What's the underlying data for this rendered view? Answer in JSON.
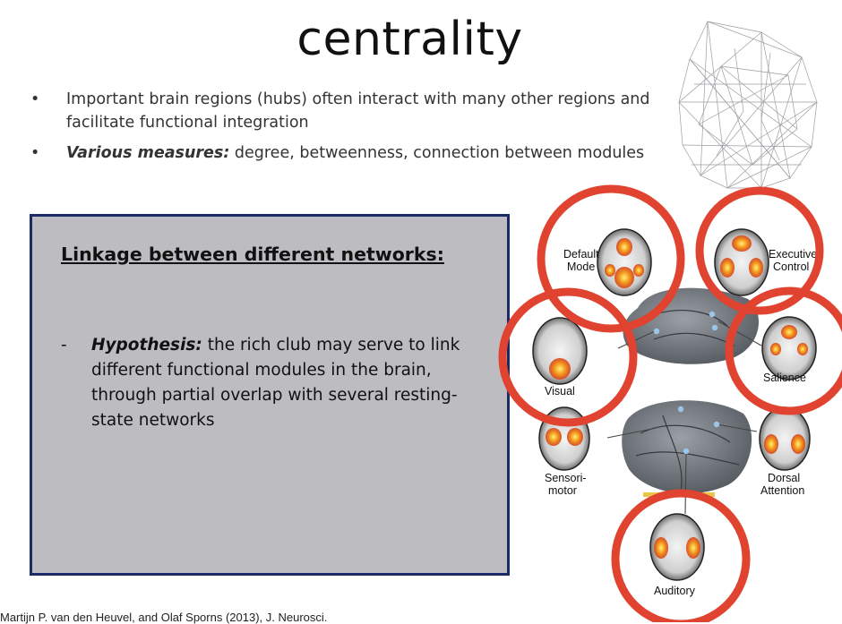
{
  "slide": {
    "title": "centrality",
    "bullets": [
      {
        "marker": "•",
        "emphasis": "",
        "text": "Important brain regions (hubs) often interact with many other regions and facilitate functional integration"
      },
      {
        "marker": "•",
        "emphasis": "Various measures:",
        "text": " degree, betweenness, connection between modules"
      }
    ],
    "box": {
      "heading": "Linkage between different networks:",
      "item_marker": "-",
      "item_emphasis": "Hypothesis:",
      "item_text": " the rich club may serve to link different functional modules in the brain, through partial overlap with several resting-state networks"
    },
    "citation": "Martijn P. van den Heuvel, and Olaf Sporns (2013), J. Neurosci."
  },
  "figure": {
    "highlight_color": "#e0432f",
    "networks": {
      "default_mode": [
        "Default",
        "Mode"
      ],
      "executive_control": [
        "Executive",
        "Control"
      ],
      "visual": [
        "Visual"
      ],
      "salience": [
        "Salience"
      ],
      "sensorimotor": [
        "Sensori-",
        "motor"
      ],
      "dorsal_attention": [
        "Dorsal",
        "Attention"
      ],
      "auditory": [
        "Auditory"
      ]
    }
  }
}
